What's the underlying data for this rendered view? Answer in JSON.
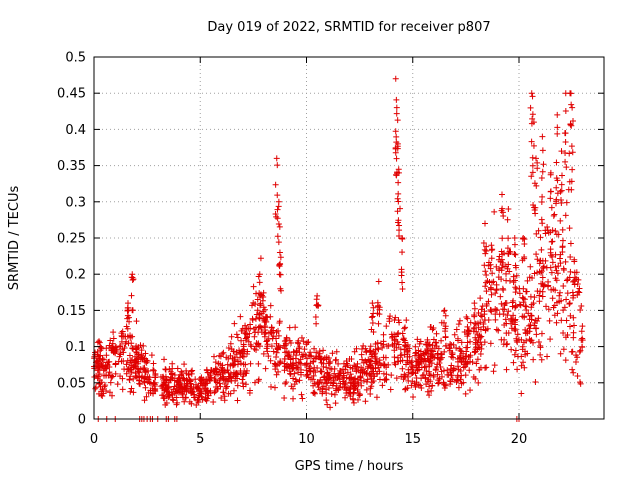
{
  "chart_data": {
    "type": "scatter",
    "title": "Day 019 of 2022, SRMTID for receiver p807",
    "xlabel": "GPS time / hours",
    "ylabel": "SRMTID / TECUs",
    "xlim": [
      0,
      24
    ],
    "ylim": [
      0,
      0.5
    ],
    "x_ticks": [
      0,
      5,
      10,
      15,
      20
    ],
    "x_tick_labels": [
      "0",
      "5",
      "10",
      "15",
      "20"
    ],
    "y_ticks": [
      0,
      0.05,
      0.1,
      0.15,
      0.2,
      0.25,
      0.3,
      0.35,
      0.4,
      0.45,
      0.5
    ],
    "y_tick_labels": [
      "0",
      "0.05",
      "0.1",
      "0.15",
      "0.2",
      "0.25",
      "0.3",
      "0.35",
      "0.4",
      "0.45",
      "0.5"
    ],
    "grid": true,
    "marker": "+",
    "series": [
      {
        "name": "SRMTID",
        "color": "#e00000",
        "profile": [
          [
            0.0,
            0.07
          ],
          [
            0.5,
            0.06
          ],
          [
            1.0,
            0.08
          ],
          [
            1.5,
            0.1
          ],
          [
            2.0,
            0.08
          ],
          [
            2.5,
            0.06
          ],
          [
            3.0,
            0.05
          ],
          [
            4.0,
            0.05
          ],
          [
            5.0,
            0.04
          ],
          [
            6.0,
            0.06
          ],
          [
            7.0,
            0.09
          ],
          [
            7.5,
            0.13
          ],
          [
            8.0,
            0.13
          ],
          [
            8.5,
            0.1
          ],
          [
            9.0,
            0.08
          ],
          [
            10.0,
            0.07
          ],
          [
            11.0,
            0.06
          ],
          [
            12.0,
            0.05
          ],
          [
            13.0,
            0.07
          ],
          [
            14.0,
            0.1
          ],
          [
            14.5,
            0.1
          ],
          [
            15.0,
            0.07
          ],
          [
            16.0,
            0.08
          ],
          [
            17.0,
            0.08
          ],
          [
            18.0,
            0.1
          ],
          [
            18.5,
            0.16
          ],
          [
            19.0,
            0.18
          ],
          [
            19.5,
            0.16
          ],
          [
            20.0,
            0.12
          ],
          [
            20.5,
            0.13
          ],
          [
            21.0,
            0.18
          ],
          [
            21.5,
            0.2
          ],
          [
            22.0,
            0.2
          ],
          [
            22.5,
            0.16
          ],
          [
            23.0,
            0.12
          ]
        ],
        "spread": 0.45,
        "gap_hours": [
          [
            2.9,
            3.1
          ],
          [
            8.8,
            8.9
          ]
        ],
        "peaks": [
          [
            0.3,
            0.1
          ],
          [
            0.9,
            0.12
          ],
          [
            1.6,
            0.16
          ],
          [
            1.8,
            0.2
          ],
          [
            7.8,
            0.2
          ],
          [
            8.6,
            0.36
          ],
          [
            8.7,
            0.3
          ],
          [
            8.75,
            0.23
          ],
          [
            10.5,
            0.17
          ],
          [
            13.1,
            0.16
          ],
          [
            13.4,
            0.19
          ],
          [
            14.2,
            0.47
          ],
          [
            14.25,
            0.43
          ],
          [
            14.3,
            0.38
          ],
          [
            14.35,
            0.34
          ],
          [
            14.5,
            0.25
          ],
          [
            16.5,
            0.15
          ],
          [
            17.9,
            0.16
          ],
          [
            18.4,
            0.27
          ],
          [
            18.7,
            0.24
          ],
          [
            19.2,
            0.31
          ],
          [
            19.5,
            0.29
          ],
          [
            19.8,
            0.25
          ],
          [
            20.2,
            0.25
          ],
          [
            20.6,
            0.45
          ],
          [
            20.7,
            0.41
          ],
          [
            20.8,
            0.36
          ],
          [
            21.1,
            0.39
          ],
          [
            21.5,
            0.34
          ],
          [
            21.8,
            0.42
          ],
          [
            22.0,
            0.37
          ],
          [
            22.2,
            0.45
          ],
          [
            22.4,
            0.45
          ],
          [
            22.5,
            0.43
          ],
          [
            22.6,
            0.22
          ]
        ],
        "zero_points_x": [
          0.2,
          0.6,
          1.0,
          2.15,
          2.25,
          2.35,
          2.5,
          2.65,
          2.75,
          3.0,
          3.4,
          3.5,
          3.8,
          3.9,
          19.9,
          20.0
        ]
      }
    ]
  }
}
